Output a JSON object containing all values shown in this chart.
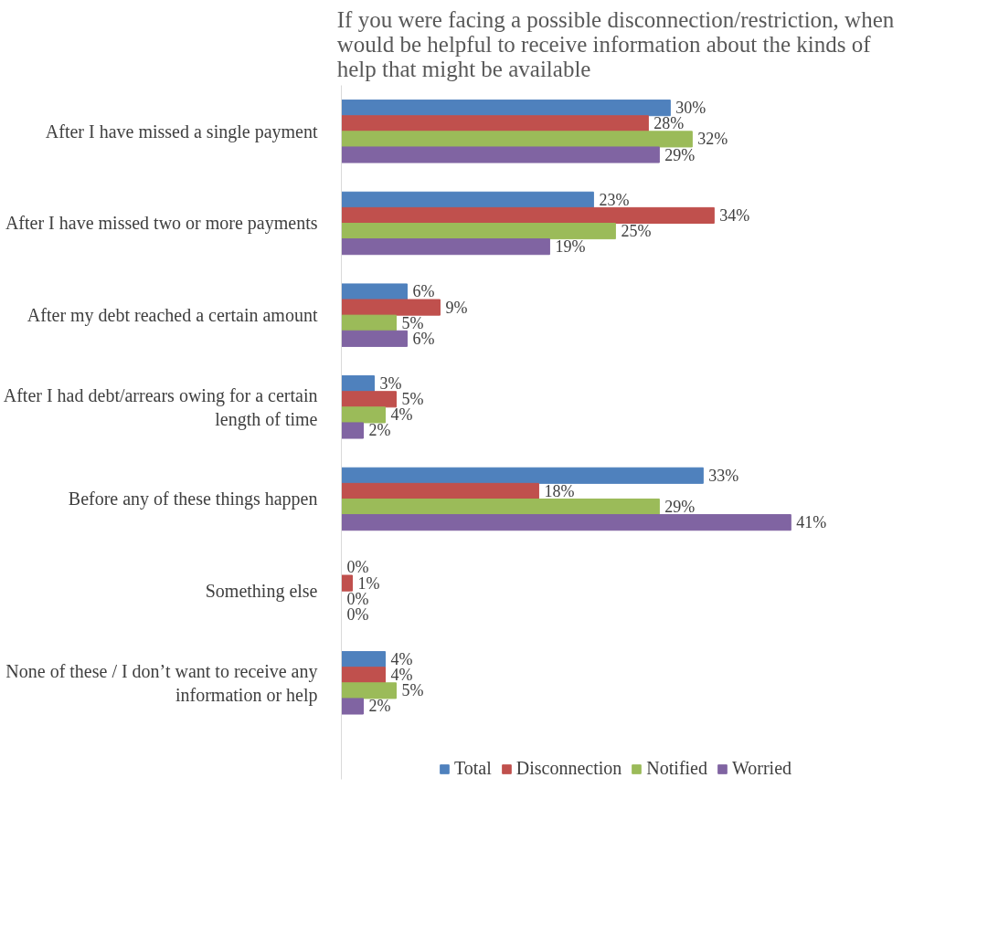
{
  "chart_data": {
    "type": "bar",
    "orientation": "horizontal",
    "title": "If you were facing a possible disconnection/restriction, when would be helpful to receive information about the kinds of help that might be available",
    "categories": [
      "After I have missed a single payment",
      "After I have missed two or more payments",
      "After my debt reached a certain amount",
      "After I had debt/arrears owing for a certain length of time",
      "Before any of these things happen",
      "Something else",
      "None of these / I don’t want to receive any information or help"
    ],
    "series": [
      {
        "name": "Total",
        "color": "#4f81bd",
        "values": [
          30,
          23,
          6,
          3,
          33,
          0,
          4
        ],
        "value_labels": [
          "30%",
          "23%",
          "6%",
          "3%",
          "33%",
          "0%",
          "4%"
        ]
      },
      {
        "name": "Disconnection",
        "color": "#c0504d",
        "values": [
          28,
          34,
          9,
          5,
          18,
          1,
          4
        ],
        "value_labels": [
          "28%",
          "34%",
          "9%",
          "5%",
          "18%",
          "1%",
          "4%"
        ]
      },
      {
        "name": "Notified",
        "color": "#9bbb59",
        "values": [
          32,
          25,
          5,
          4,
          29,
          0,
          5
        ],
        "value_labels": [
          "32%",
          "25%",
          "5%",
          "4%",
          "29%",
          "0%",
          "5%"
        ]
      },
      {
        "name": "Worried",
        "color": "#8064a2",
        "values": [
          29,
          19,
          6,
          2,
          41,
          0,
          2
        ],
        "value_labels": [
          "29%",
          "19%",
          "6%",
          "2%",
          "41%",
          "0%",
          "2%"
        ]
      }
    ],
    "legend": "bottom",
    "grid": false,
    "tick_labels": "y"
  }
}
